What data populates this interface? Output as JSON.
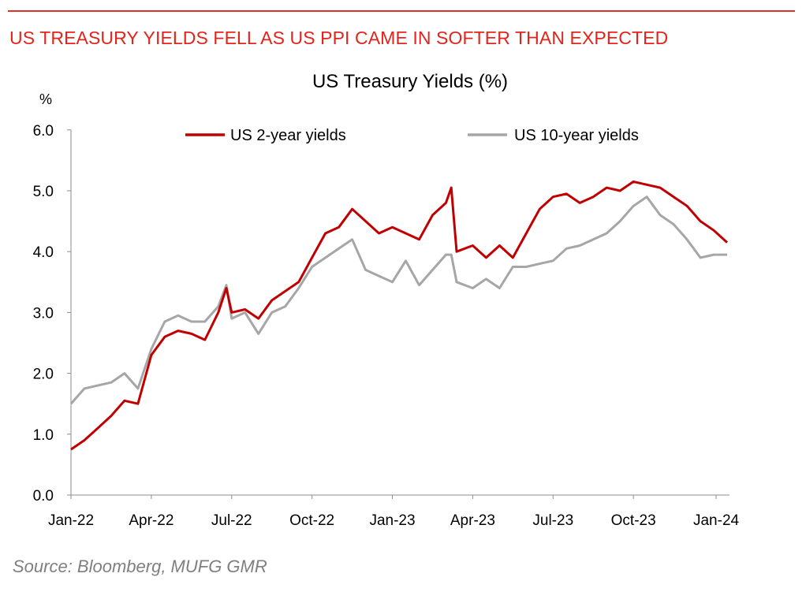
{
  "headline": "US TREASURY YIELDS FELL AS US PPI CAME IN SOFTER THAN EXPECTED",
  "source": "Source: Bloomberg, MUFG GMR",
  "chart_data": {
    "type": "line",
    "title": "US Treasury Yields (%)",
    "ylabel": "%",
    "xlabel": "",
    "ylim": [
      0,
      6
    ],
    "yticks": [
      "0.0",
      "1.0",
      "2.0",
      "3.0",
      "4.0",
      "5.0",
      "6.0"
    ],
    "xticks": [
      "Jan-22",
      "Apr-22",
      "Jul-22",
      "Oct-22",
      "Jan-23",
      "Apr-23",
      "Jul-23",
      "Oct-23",
      "Jan-24"
    ],
    "x_unit": "months since Jan-22",
    "grid": false,
    "legend": "top",
    "x": [
      0,
      0.5,
      1,
      1.5,
      2,
      2.5,
      3,
      3.5,
      4,
      4.5,
      5,
      5.5,
      5.8,
      6,
      6.5,
      7,
      7.5,
      8,
      8.5,
      9,
      9.5,
      10,
      10.5,
      11,
      11.5,
      12,
      12.5,
      13,
      13.5,
      14,
      14.2,
      14.4,
      15,
      15.5,
      16,
      16.5,
      17,
      17.5,
      18,
      18.5,
      19,
      19.5,
      20,
      20.5,
      21,
      21.5,
      22,
      22.5,
      23,
      23.5,
      24,
      24.5
    ],
    "series": [
      {
        "name": "US 2-year yields",
        "color": "#c00000",
        "values": [
          0.75,
          0.9,
          1.1,
          1.3,
          1.55,
          1.5,
          2.3,
          2.6,
          2.7,
          2.65,
          2.55,
          3.0,
          3.4,
          3.0,
          3.05,
          2.9,
          3.2,
          3.35,
          3.5,
          3.9,
          4.3,
          4.4,
          4.7,
          4.5,
          4.3,
          4.4,
          4.3,
          4.2,
          4.6,
          4.8,
          5.05,
          4.0,
          4.1,
          3.9,
          4.1,
          3.9,
          4.3,
          4.7,
          4.9,
          4.95,
          4.8,
          4.9,
          5.05,
          5.0,
          5.15,
          5.1,
          5.05,
          4.9,
          4.75,
          4.5,
          4.35,
          4.15
        ]
      },
      {
        "name": "US 10-year yields",
        "color": "#a6a6a6",
        "values": [
          1.5,
          1.75,
          1.8,
          1.85,
          2.0,
          1.75,
          2.4,
          2.85,
          2.95,
          2.85,
          2.85,
          3.1,
          3.45,
          2.9,
          3.0,
          2.65,
          3.0,
          3.1,
          3.4,
          3.75,
          3.9,
          4.05,
          4.2,
          3.7,
          3.6,
          3.5,
          3.85,
          3.45,
          3.7,
          3.95,
          3.95,
          3.5,
          3.4,
          3.55,
          3.4,
          3.75,
          3.75,
          3.8,
          3.85,
          4.05,
          4.1,
          4.2,
          4.3,
          4.5,
          4.75,
          4.9,
          4.6,
          4.45,
          4.2,
          3.9,
          3.95,
          3.95
        ]
      }
    ]
  }
}
